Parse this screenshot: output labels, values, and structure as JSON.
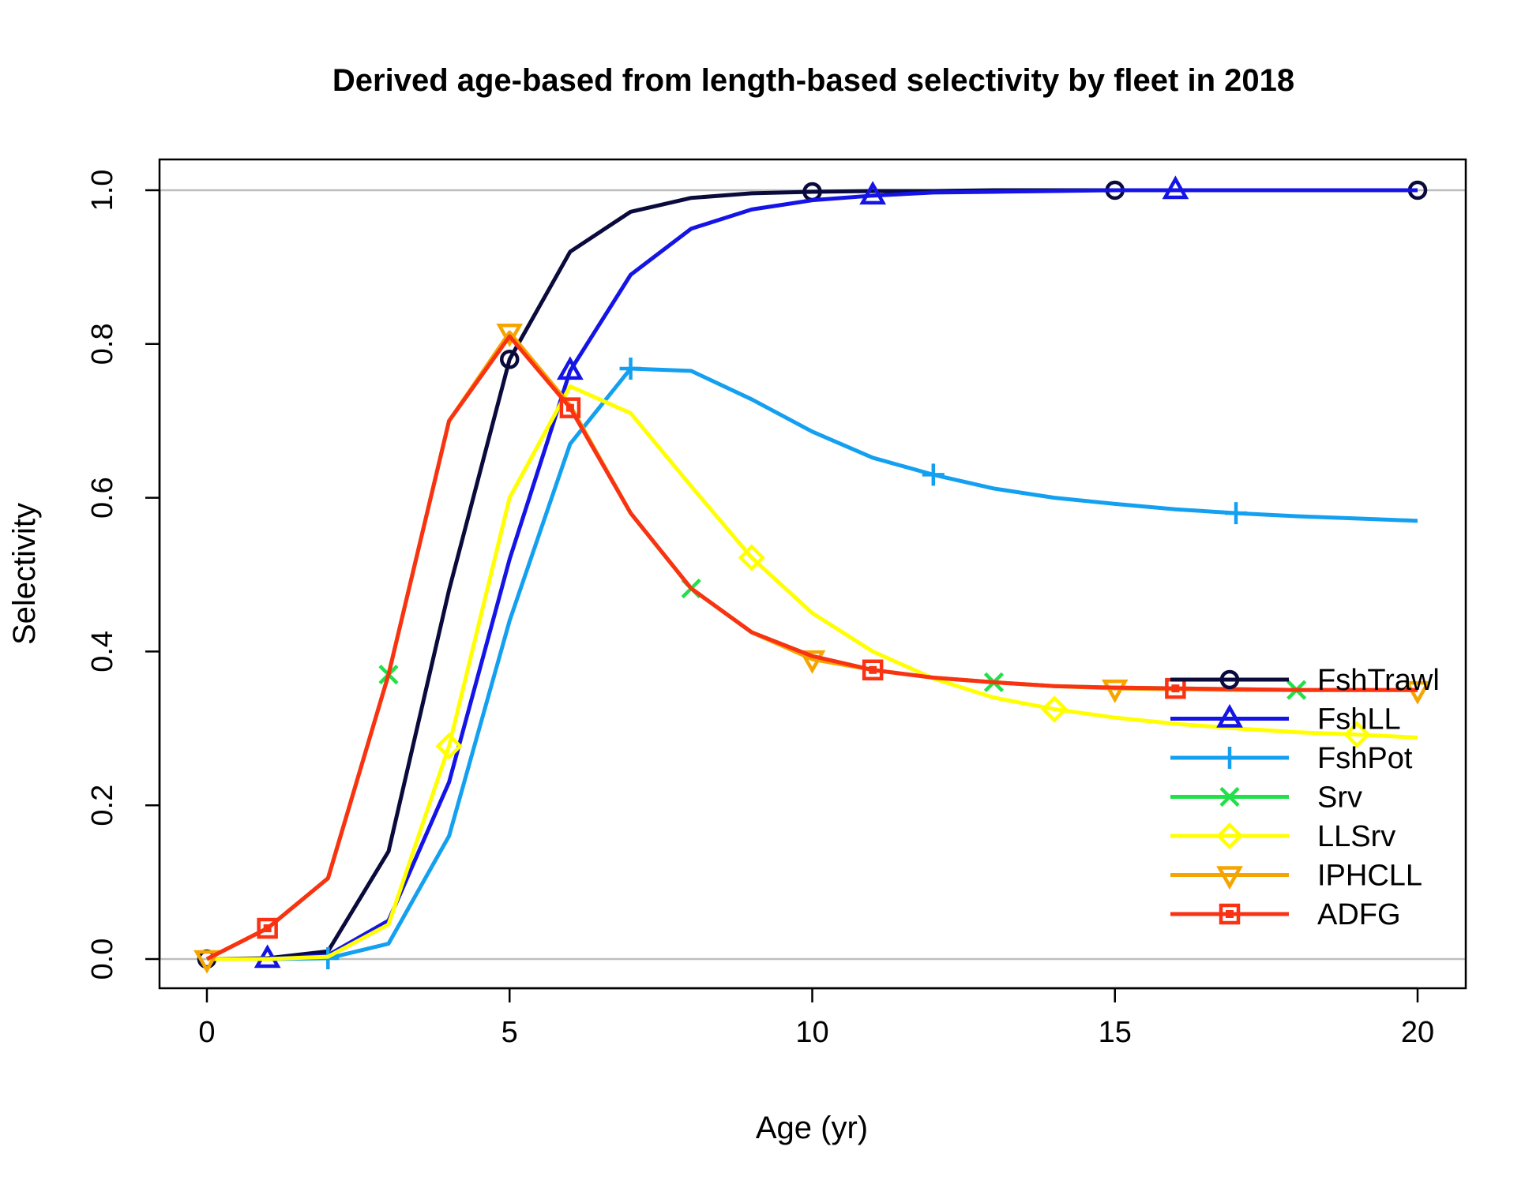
{
  "chart_data": {
    "type": "line",
    "title": "Derived age-based from length-based selectivity by fleet in 2018",
    "xlabel": "Age (yr)",
    "ylabel": "Selectivity",
    "xlim": [
      0,
      20
    ],
    "ylim": [
      0,
      1
    ],
    "x_ticks": [
      "0",
      "5",
      "10",
      "15",
      "20"
    ],
    "y_ticks": [
      "0.0",
      "0.2",
      "0.4",
      "0.6",
      "0.8",
      "1.0"
    ],
    "reference_lines": [
      0,
      1
    ],
    "legend_position": "right",
    "x": [
      0,
      1,
      2,
      3,
      4,
      5,
      6,
      7,
      8,
      9,
      10,
      11,
      12,
      13,
      14,
      15,
      16,
      17,
      18,
      19,
      20
    ],
    "series": [
      {
        "name": "FshTrawl",
        "color": "#0a0a3c",
        "marker": "circle",
        "marker_offset": 0,
        "values": [
          0,
          0.001,
          0.01,
          0.14,
          0.48,
          0.78,
          0.92,
          0.972,
          0.99,
          0.996,
          0.998,
          0.999,
          0.999,
          1,
          1,
          1,
          1,
          1,
          1,
          1,
          1
        ]
      },
      {
        "name": "FshLL",
        "color": "#1414e6",
        "marker": "triangle-up",
        "marker_offset": 1,
        "values": [
          0,
          0,
          0.005,
          0.05,
          0.23,
          0.52,
          0.765,
          0.89,
          0.95,
          0.975,
          0.987,
          0.993,
          0.997,
          0.998,
          0.999,
          1,
          1,
          1,
          1,
          1,
          1
        ]
      },
      {
        "name": "FshPot",
        "color": "#14a0f0",
        "marker": "plus",
        "marker_offset": 2,
        "values": [
          0,
          0,
          0.001,
          0.02,
          0.16,
          0.44,
          0.67,
          0.768,
          0.765,
          0.728,
          0.686,
          0.652,
          0.63,
          0.612,
          0.6,
          0.592,
          0.585,
          0.58,
          0.576,
          0.573,
          0.57
        ]
      },
      {
        "name": "Srv",
        "color": "#22e04a",
        "marker": "cross",
        "marker_offset": 3,
        "values": [
          0,
          0.04,
          0.105,
          0.37,
          0.7,
          0.81,
          0.72,
          0.58,
          0.482,
          0.425,
          0.394,
          0.376,
          0.366,
          0.36,
          0.355,
          0.353,
          0.352,
          0.351,
          0.35,
          0.35,
          0.35
        ]
      },
      {
        "name": "LLSrv",
        "color": "#ffff00",
        "marker": "diamond",
        "marker_offset": 4,
        "values": [
          0,
          0,
          0.003,
          0.045,
          0.277,
          0.6,
          0.745,
          0.71,
          0.615,
          0.522,
          0.45,
          0.4,
          0.365,
          0.34,
          0.325,
          0.314,
          0.306,
          0.3,
          0.295,
          0.292,
          0.288
        ]
      },
      {
        "name": "IPHCLL",
        "color": "#f5a500",
        "marker": "triangle-down",
        "marker_offset": 0,
        "values": [
          0,
          0.04,
          0.105,
          0.37,
          0.7,
          0.815,
          0.72,
          0.58,
          0.482,
          0.425,
          0.39,
          0.376,
          0.366,
          0.36,
          0.355,
          0.352,
          0.351,
          0.35,
          0.35,
          0.35,
          0.35
        ]
      },
      {
        "name": "ADFG",
        "color": "#fa3214",
        "marker": "square",
        "marker_offset": 1,
        "values": [
          0,
          0.04,
          0.105,
          0.37,
          0.7,
          0.81,
          0.717,
          0.58,
          0.482,
          0.425,
          0.394,
          0.376,
          0.366,
          0.36,
          0.355,
          0.353,
          0.352,
          0.351,
          0.35,
          0.35,
          0.35
        ]
      }
    ]
  }
}
